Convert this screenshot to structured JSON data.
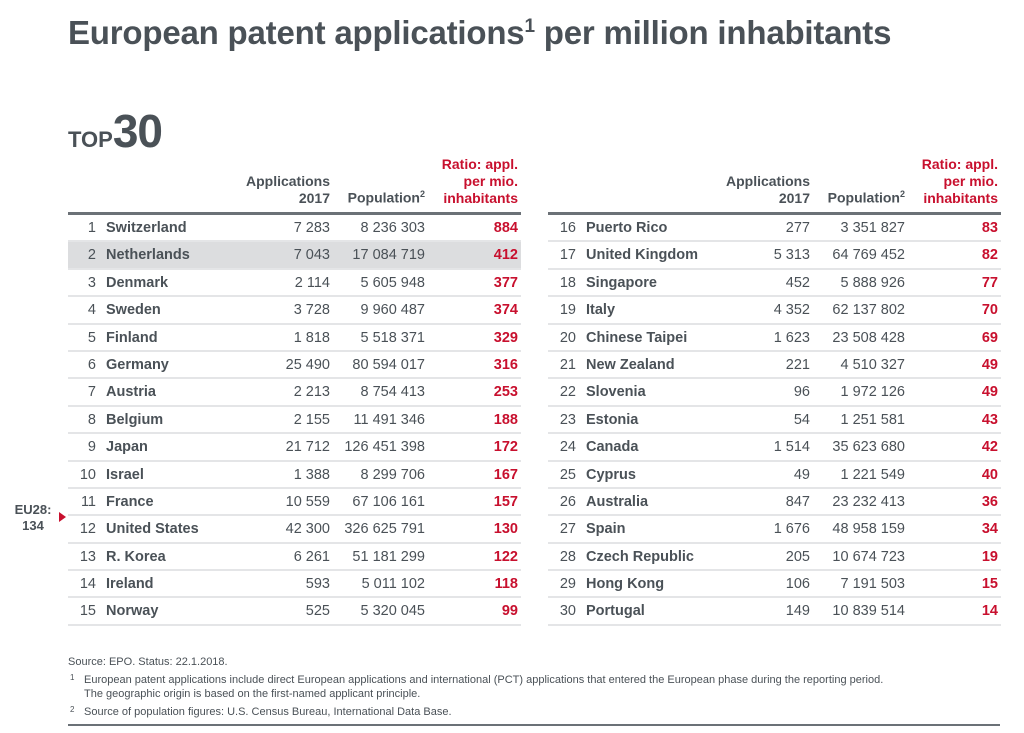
{
  "title": {
    "text": "European patent applications",
    "sup": "1",
    "rest": " per million inhabitants"
  },
  "top": {
    "word": "TOP",
    "number": "30"
  },
  "headers": {
    "apps_l1": "Applications",
    "apps_l2": "2017",
    "pop": "Population",
    "pop_sup": "2",
    "ratio_l1": "Ratio: appl.",
    "ratio_l2": "per mio.",
    "ratio_l3": "inhabitants"
  },
  "eu28": {
    "label": "EU28:",
    "value": "134",
    "position_after_rank": 11
  },
  "highlighted_rank": 2,
  "colors": {
    "accent": "#c8102e",
    "text": "#4a5157",
    "highlight": "#dcdddf"
  },
  "rows": [
    {
      "rank": "1",
      "country": "Switzerland",
      "apps": "7 283",
      "pop": "8 236 303",
      "ratio": "884"
    },
    {
      "rank": "2",
      "country": "Netherlands",
      "apps": "7 043",
      "pop": "17 084 719",
      "ratio": "412"
    },
    {
      "rank": "3",
      "country": "Denmark",
      "apps": "2 114",
      "pop": "5 605 948",
      "ratio": "377"
    },
    {
      "rank": "4",
      "country": "Sweden",
      "apps": "3 728",
      "pop": "9 960 487",
      "ratio": "374"
    },
    {
      "rank": "5",
      "country": "Finland",
      "apps": "1 818",
      "pop": "5 518 371",
      "ratio": "329"
    },
    {
      "rank": "6",
      "country": "Germany",
      "apps": "25 490",
      "pop": "80 594 017",
      "ratio": "316"
    },
    {
      "rank": "7",
      "country": "Austria",
      "apps": "2 213",
      "pop": "8 754 413",
      "ratio": "253"
    },
    {
      "rank": "8",
      "country": "Belgium",
      "apps": "2 155",
      "pop": "11 491 346",
      "ratio": "188"
    },
    {
      "rank": "9",
      "country": "Japan",
      "apps": "21 712",
      "pop": "126 451 398",
      "ratio": "172"
    },
    {
      "rank": "10",
      "country": "Israel",
      "apps": "1 388",
      "pop": "8 299 706",
      "ratio": "167"
    },
    {
      "rank": "11",
      "country": "France",
      "apps": "10 559",
      "pop": "67 106 161",
      "ratio": "157"
    },
    {
      "rank": "12",
      "country": "United States",
      "apps": "42 300",
      "pop": "326 625 791",
      "ratio": "130"
    },
    {
      "rank": "13",
      "country": "R. Korea",
      "apps": "6 261",
      "pop": "51 181 299",
      "ratio": "122"
    },
    {
      "rank": "14",
      "country": "Ireland",
      "apps": "593",
      "pop": "5 011 102",
      "ratio": "118"
    },
    {
      "rank": "15",
      "country": "Norway",
      "apps": "525",
      "pop": "5 320 045",
      "ratio": "99"
    },
    {
      "rank": "16",
      "country": "Puerto Rico",
      "apps": "277",
      "pop": "3 351 827",
      "ratio": "83"
    },
    {
      "rank": "17",
      "country": "United Kingdom",
      "apps": "5 313",
      "pop": "64 769 452",
      "ratio": "82"
    },
    {
      "rank": "18",
      "country": "Singapore",
      "apps": "452",
      "pop": "5 888 926",
      "ratio": "77"
    },
    {
      "rank": "19",
      "country": "Italy",
      "apps": "4 352",
      "pop": "62 137 802",
      "ratio": "70"
    },
    {
      "rank": "20",
      "country": "Chinese Taipei",
      "apps": "1 623",
      "pop": "23 508 428",
      "ratio": "69"
    },
    {
      "rank": "21",
      "country": "New Zealand",
      "apps": "221",
      "pop": "4 510 327",
      "ratio": "49"
    },
    {
      "rank": "22",
      "country": "Slovenia",
      "apps": "96",
      "pop": "1 972 126",
      "ratio": "49"
    },
    {
      "rank": "23",
      "country": "Estonia",
      "apps": "54",
      "pop": "1 251 581",
      "ratio": "43"
    },
    {
      "rank": "24",
      "country": "Canada",
      "apps": "1 514",
      "pop": "35 623 680",
      "ratio": "42"
    },
    {
      "rank": "25",
      "country": "Cyprus",
      "apps": "49",
      "pop": "1 221 549",
      "ratio": "40"
    },
    {
      "rank": "26",
      "country": "Australia",
      "apps": "847",
      "pop": "23 232 413",
      "ratio": "36"
    },
    {
      "rank": "27",
      "country": "Spain",
      "apps": "1 676",
      "pop": "48 958 159",
      "ratio": "34"
    },
    {
      "rank": "28",
      "country": "Czech Republic",
      "apps": "205",
      "pop": "10 674 723",
      "ratio": "19"
    },
    {
      "rank": "29",
      "country": "Hong Kong",
      "apps": "106",
      "pop": "7 191 503",
      "ratio": "15"
    },
    {
      "rank": "30",
      "country": "Portugal",
      "apps": "149",
      "pop": "10 839 514",
      "ratio": "14"
    }
  ],
  "footnotes": {
    "source": "Source: EPO. Status: 22.1.2018.",
    "fn1_mark": "1",
    "fn1_line1": "European patent applications include direct European applications and international (PCT) applications that entered the European phase during the reporting period.",
    "fn1_line2": "The geographic origin is based on the first-named applicant principle.",
    "fn2_mark": "2",
    "fn2": "Source of population figures: U.S. Census Bureau, International Data Base."
  }
}
